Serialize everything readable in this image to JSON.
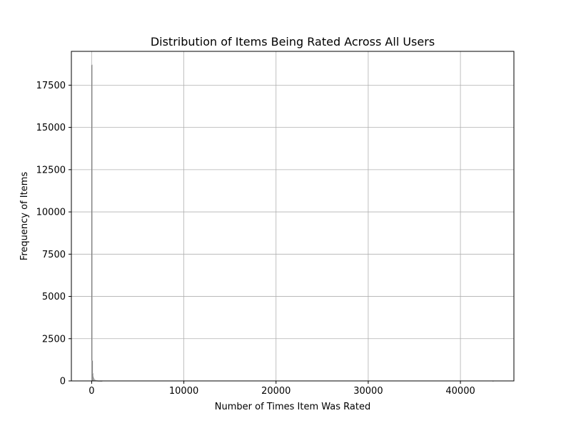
{
  "chart_data": {
    "type": "bar",
    "title": "Distribution of Items Being Rated Across All Users",
    "xlabel": "Number of Times Item Was Rated",
    "ylabel": "Frequency of Items",
    "xlim": [
      -2200,
      45800
    ],
    "ylim": [
      0,
      19500
    ],
    "grid": true,
    "bar_color": "#000000",
    "bar_edge_color": "#b0b0b0",
    "x_ticks": [
      {
        "value": 0,
        "label": "0"
      },
      {
        "value": 10000,
        "label": "10000"
      },
      {
        "value": 20000,
        "label": "20000"
      },
      {
        "value": 30000,
        "label": "30000"
      },
      {
        "value": 40000,
        "label": "40000"
      }
    ],
    "y_ticks": [
      {
        "value": 0,
        "label": "0"
      },
      {
        "value": 2500,
        "label": "2500"
      },
      {
        "value": 5000,
        "label": "5000"
      },
      {
        "value": 7500,
        "label": "7500"
      },
      {
        "value": 10000,
        "label": "10000"
      },
      {
        "value": 12500,
        "label": "12500"
      },
      {
        "value": 15000,
        "label": "15000"
      },
      {
        "value": 17500,
        "label": "17500"
      }
    ],
    "bin_width": 43,
    "bins": [
      {
        "x": 0,
        "count": 18700
      },
      {
        "x": 43,
        "count": 1200
      },
      {
        "x": 86,
        "count": 450
      },
      {
        "x": 129,
        "count": 250
      },
      {
        "x": 172,
        "count": 160
      },
      {
        "x": 215,
        "count": 110
      },
      {
        "x": 258,
        "count": 80
      },
      {
        "x": 301,
        "count": 60
      },
      {
        "x": 344,
        "count": 45
      },
      {
        "x": 387,
        "count": 35
      },
      {
        "x": 430,
        "count": 28
      },
      {
        "x": 473,
        "count": 22
      },
      {
        "x": 516,
        "count": 18
      },
      {
        "x": 559,
        "count": 15
      },
      {
        "x": 602,
        "count": 12
      },
      {
        "x": 645,
        "count": 10
      },
      {
        "x": 688,
        "count": 8
      },
      {
        "x": 731,
        "count": 7
      },
      {
        "x": 774,
        "count": 6
      },
      {
        "x": 817,
        "count": 5
      },
      {
        "x": 860,
        "count": 4
      },
      {
        "x": 903,
        "count": 3
      },
      {
        "x": 946,
        "count": 3
      },
      {
        "x": 989,
        "count": 2
      },
      {
        "x": 1032,
        "count": 2
      },
      {
        "x": 1075,
        "count": 2
      },
      {
        "x": 43500,
        "count": 1
      }
    ]
  }
}
